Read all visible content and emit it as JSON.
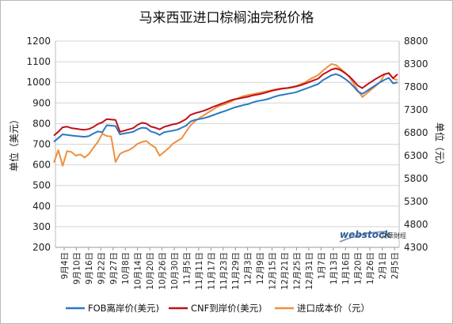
{
  "chart_data": {
    "type": "line",
    "title": "马来西亚进口棕榈油完税价格",
    "ylabel": "单位（美元）",
    "y2label": "单位（元）",
    "ylim": [
      200,
      1200
    ],
    "y2lim": [
      4300,
      8800
    ],
    "yticks": [
      200,
      300,
      400,
      500,
      600,
      700,
      800,
      900,
      1000,
      1100,
      1200
    ],
    "y2ticks": [
      4300,
      4800,
      5300,
      5800,
      6300,
      6800,
      7300,
      7800,
      8300,
      8800
    ],
    "grid": true,
    "legend_position": "bottom",
    "x_tick_labels": [
      "9月4日",
      "9月10日",
      "9月16日",
      "9月22日",
      "9月27日",
      "10月8日",
      "10月14日",
      "10月20日",
      "10月26日",
      "10月30日",
      "11月5日",
      "11月11日",
      "11月17日",
      "11月23日",
      "11月29日",
      "12月3日",
      "12月9日",
      "12月15日",
      "12月21日",
      "12月25日",
      "12月31日",
      "1月7日",
      "1月13日",
      "1月16日",
      "1月20日",
      "1月26日",
      "2月1日",
      "2月5日"
    ],
    "series": [
      {
        "name": "FOB离岸价(美元)",
        "color": "#2a78c2",
        "axis": "left",
        "values": [
          712,
          730,
          748,
          745,
          742,
          740,
          738,
          736,
          740,
          752,
          762,
          758,
          792,
          790,
          788,
          748,
          752,
          756,
          760,
          772,
          780,
          778,
          762,
          756,
          745,
          758,
          762,
          766,
          770,
          780,
          790,
          810,
          818,
          822,
          826,
          832,
          840,
          848,
          855,
          862,
          870,
          878,
          884,
          890,
          894,
          902,
          908,
          912,
          916,
          922,
          930,
          936,
          940,
          944,
          948,
          952,
          960,
          968,
          976,
          984,
          992,
          1010,
          1022,
          1034,
          1040,
          1032,
          1018,
          1002,
          980,
          956,
          944,
          958,
          972,
          986,
          1000,
          1012,
          1022,
          995,
          1000
        ]
      },
      {
        "name": "CNF到岸价(美元)",
        "color": "#c0101a",
        "axis": "left",
        "values": [
          742,
          760,
          782,
          785,
          778,
          775,
          772,
          770,
          774,
          784,
          798,
          806,
          822,
          820,
          818,
          760,
          766,
          772,
          778,
          794,
          804,
          800,
          786,
          780,
          772,
          784,
          790,
          796,
          800,
          810,
          822,
          842,
          850,
          856,
          862,
          870,
          880,
          888,
          896,
          904,
          912,
          918,
          922,
          926,
          930,
          936,
          940,
          944,
          950,
          956,
          962,
          966,
          970,
          972,
          976,
          980,
          986,
          994,
          1002,
          1010,
          1018,
          1038,
          1050,
          1062,
          1068,
          1060,
          1046,
          1030,
          1008,
          984,
          972,
          988,
          1002,
          1016,
          1028,
          1040,
          1044,
          1020,
          1040
        ]
      },
      {
        "name": "进口成本价（元）",
        "color": "#ee9040",
        "axis": "right",
        "values": [
          6150,
          6420,
          6080,
          6400,
          6380,
          6300,
          6330,
          6260,
          6340,
          6480,
          6600,
          6780,
          6730,
          6720,
          6160,
          6340,
          6390,
          6420,
          6480,
          6560,
          6600,
          6620,
          6540,
          6480,
          6300,
          6380,
          6460,
          6560,
          6620,
          6680,
          6820,
          6960,
          7050,
          7120,
          7180,
          7240,
          7300,
          7360,
          7400,
          7430,
          7470,
          7520,
          7560,
          7600,
          7620,
          7640,
          7660,
          7680,
          7700,
          7720,
          7740,
          7760,
          7770,
          7780,
          7800,
          7820,
          7860,
          7900,
          7960,
          8010,
          8060,
          8150,
          8230,
          8300,
          8280,
          8200,
          8120,
          8020,
          7880,
          7720,
          7580,
          7660,
          7740,
          7820,
          7900,
          8060,
          8110,
          7980,
          7950
        ]
      }
    ]
  },
  "watermark": {
    "brand": "webstock",
    "sub": "文華財經"
  }
}
